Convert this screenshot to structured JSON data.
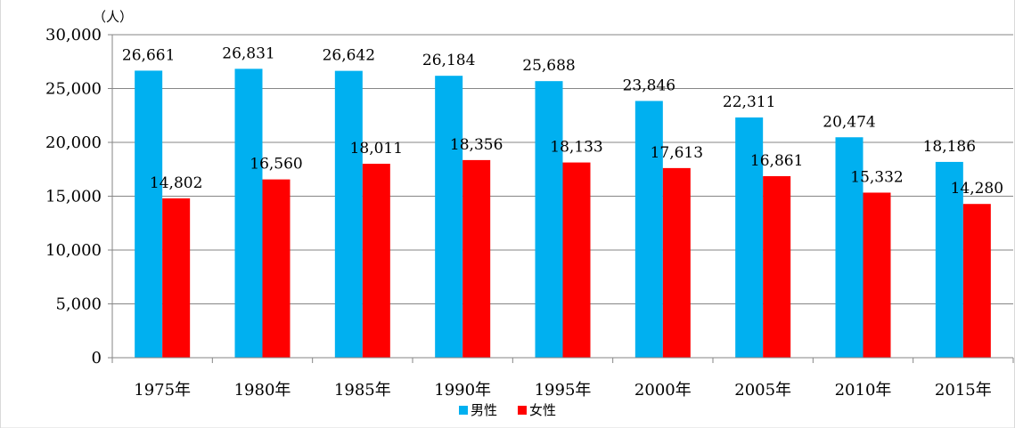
{
  "chart_data": {
    "type": "bar",
    "unit": "（人）",
    "categories": [
      "1975年",
      "1980年",
      "1985年",
      "1990年",
      "1995年",
      "2000年",
      "2005年",
      "2010年",
      "2015年"
    ],
    "series": [
      {
        "name": "男性",
        "color": "#00b0f0",
        "values": [
          26661,
          26831,
          26642,
          26184,
          25688,
          23846,
          22311,
          20474,
          18186
        ]
      },
      {
        "name": "女性",
        "color": "#ff0000",
        "values": [
          14802,
          16560,
          18011,
          18356,
          18133,
          17613,
          16861,
          15332,
          14280
        ]
      }
    ],
    "ylim": [
      0,
      30000
    ],
    "yticks": [
      0,
      5000,
      10000,
      15000,
      20000,
      25000,
      30000
    ],
    "ytick_labels": [
      "0",
      "5,000",
      "10,000",
      "15,000",
      "20,000",
      "25,000",
      "30,000"
    ],
    "data_labels": [
      [
        "26,661",
        "26,831",
        "26,642",
        "26,184",
        "25,688",
        "23,846",
        "22,311",
        "20,474",
        "18,186"
      ],
      [
        "14,802",
        "16,560",
        "18,011",
        "18,356",
        "18,133",
        "17,613",
        "16,861",
        "15,332",
        "14,280"
      ]
    ],
    "grid": true,
    "legend_position": "bottom"
  }
}
